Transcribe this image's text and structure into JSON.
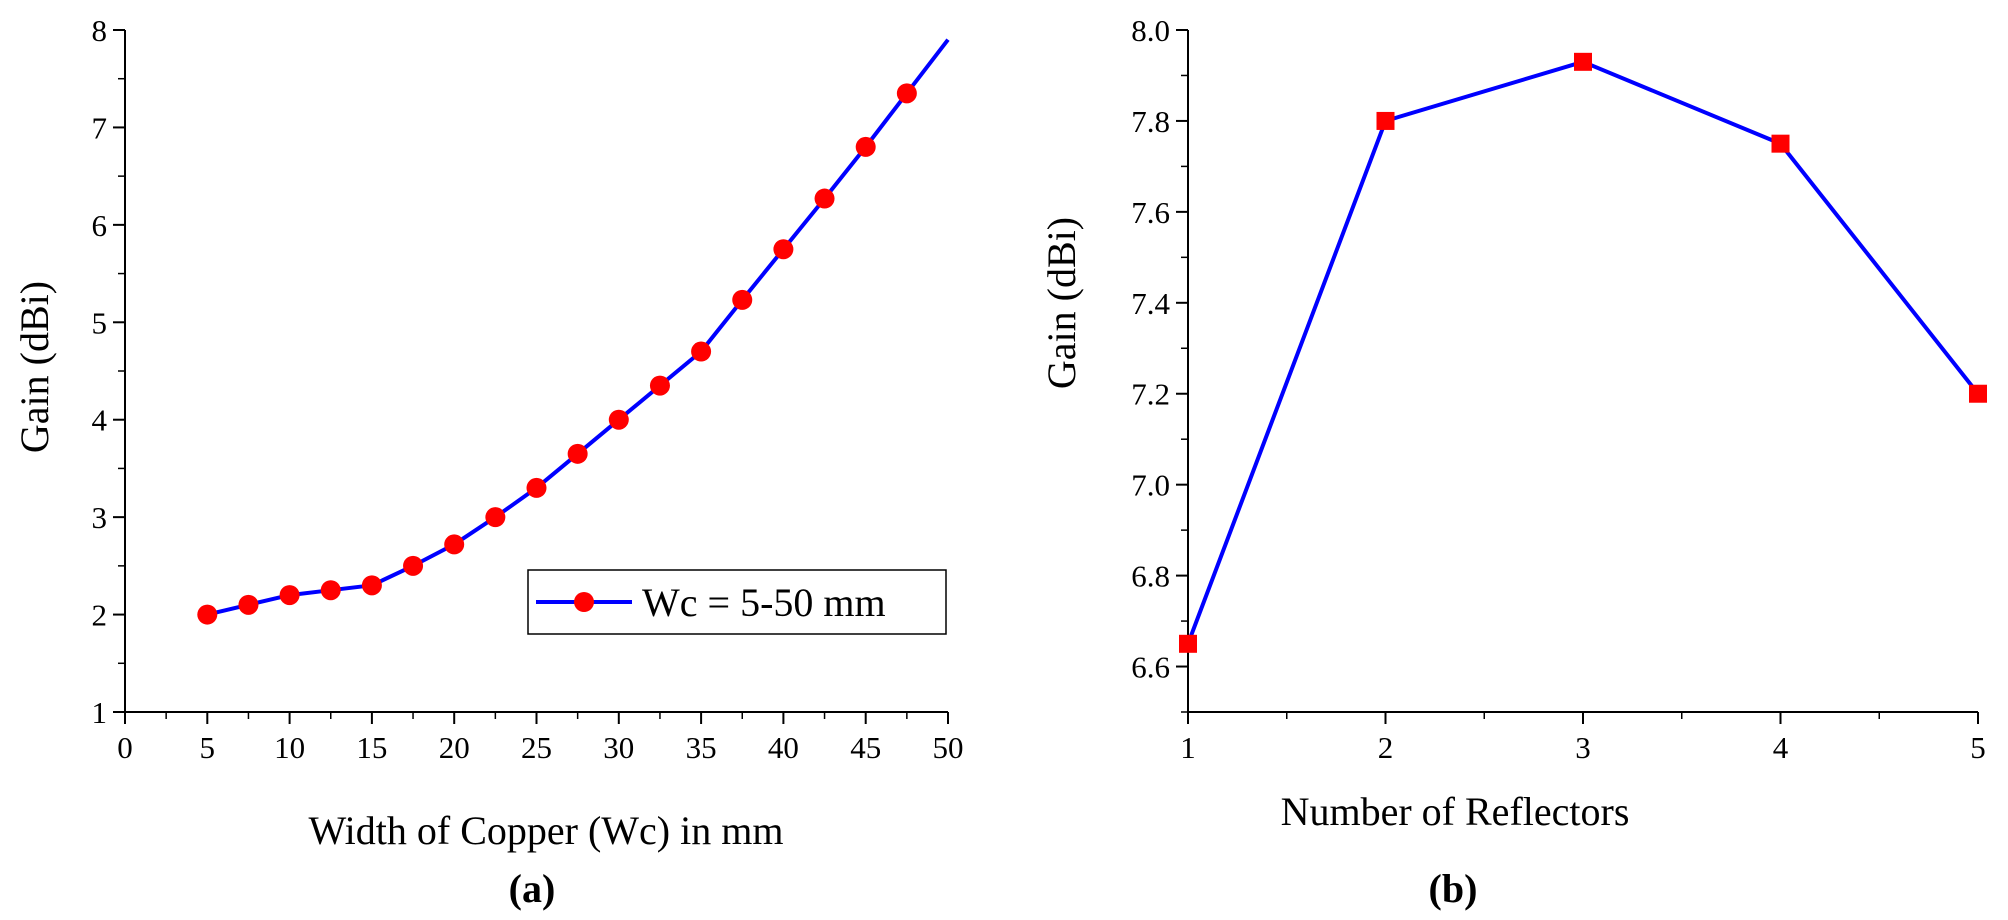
{
  "chart_data": [
    {
      "id": "a",
      "type": "line",
      "caption": "(a)",
      "title": "",
      "xlabel": "Width of Copper (Wc) in mm",
      "ylabel": "Gain (dBi)",
      "xlim": [
        0,
        50
      ],
      "ylim": [
        1,
        8
      ],
      "xticks": [
        "0",
        "5",
        "10",
        "15",
        "20",
        "25",
        "30",
        "35",
        "40",
        "45",
        "50"
      ],
      "yticks": [
        "1",
        "2",
        "3",
        "4",
        "5",
        "6",
        "7",
        "8"
      ],
      "legend": {
        "position": "lower-right",
        "entries": [
          "Wc = 5-50 mm"
        ]
      },
      "grid": false,
      "series": [
        {
          "name": "Wc = 5-50 mm",
          "color": "#0000ff",
          "marker": "circle",
          "marker_color": "#ff0000",
          "x": [
            5,
            7.5,
            10,
            12.5,
            15,
            17.5,
            20,
            22.5,
            25,
            27.5,
            30,
            32.5,
            35,
            37.5,
            40,
            42.5,
            45,
            47.5
          ],
          "y": [
            2.0,
            2.1,
            2.2,
            2.25,
            2.3,
            2.5,
            2.72,
            3.0,
            3.3,
            3.65,
            4.0,
            4.35,
            4.7,
            5.23,
            5.75,
            6.27,
            6.8,
            7.35
          ],
          "line_end": [
            50,
            7.9
          ]
        }
      ]
    },
    {
      "id": "b",
      "type": "line",
      "caption": "(b)",
      "title": "",
      "xlabel": "Number of Reflectors",
      "ylabel": "Gain (dBi)",
      "xlim": [
        1,
        5
      ],
      "ylim": [
        6.5,
        8.0
      ],
      "xticks": [
        "1",
        "2",
        "3",
        "4",
        "5"
      ],
      "yticks": [
        "6.6",
        "6.8",
        "7.0",
        "7.2",
        "7.4",
        "7.6",
        "7.8",
        "8.0"
      ],
      "grid": false,
      "series": [
        {
          "name": "Gain",
          "color": "#0000ff",
          "marker": "square",
          "marker_color": "#ff0000",
          "x": [
            1,
            2,
            3,
            4,
            5
          ],
          "y": [
            6.65,
            7.8,
            7.93,
            7.75,
            7.2
          ]
        }
      ]
    }
  ]
}
